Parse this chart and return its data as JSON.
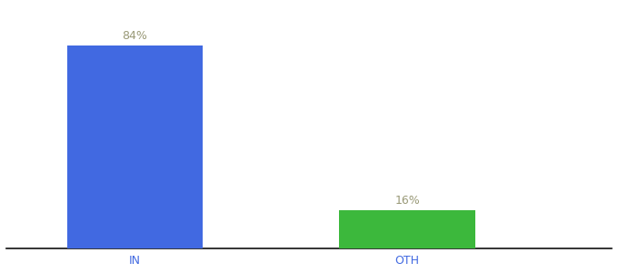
{
  "categories": [
    "IN",
    "OTH"
  ],
  "values": [
    84,
    16
  ],
  "bar_colors": [
    "#4169e1",
    "#3cb83c"
  ],
  "label_texts": [
    "84%",
    "16%"
  ],
  "background_color": "#ffffff",
  "axis_line_color": "#111111",
  "label_color": "#999977",
  "tick_color": "#4169e1",
  "ylim": [
    0,
    100
  ],
  "bar_width": 0.18,
  "figsize": [
    6.8,
    3.0
  ],
  "dpi": 100,
  "x_positions": [
    0.22,
    0.58
  ]
}
